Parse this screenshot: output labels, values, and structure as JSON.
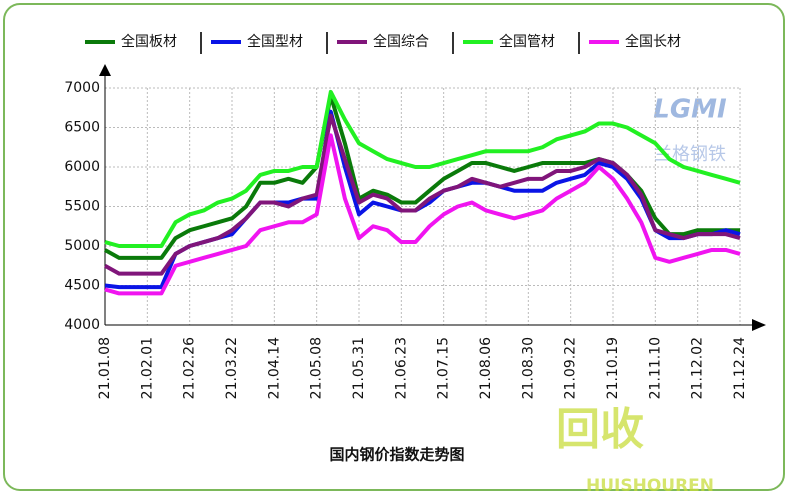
{
  "chart_data": {
    "type": "line",
    "title": "国内钢价指数走势图",
    "categories": [
      "21.01.08",
      null,
      null,
      "21.02.01",
      null,
      null,
      "21.02.26",
      null,
      null,
      "21.03.22",
      null,
      null,
      "21.04.14",
      null,
      null,
      "21.05.08",
      null,
      null,
      "21.05.31",
      null,
      null,
      "21.06.23",
      null,
      null,
      "21.07.15",
      null,
      null,
      "21.08.06",
      null,
      null,
      "21.08.30",
      null,
      null,
      "21.09.22",
      null,
      null,
      "21.10.19",
      null,
      null,
      "21.11.10",
      null,
      null,
      "21.12.02",
      null,
      null,
      "21.12.24"
    ],
    "series": [
      {
        "name": "全国板材",
        "color": "#0a7a0a",
        "values": [
          4950,
          4850,
          4850,
          4850,
          4850,
          5100,
          5200,
          5250,
          5300,
          5350,
          5500,
          5800,
          5800,
          5850,
          5800,
          6000,
          6900,
          6300,
          5600,
          5700,
          5650,
          5550,
          5550,
          5700,
          5850,
          5950,
          6050,
          6050,
          6000,
          5950,
          6000,
          6050,
          6050,
          6050,
          6050,
          6100,
          6050,
          5900,
          5700,
          5350,
          5150,
          5150,
          5200,
          5200,
          5200,
          5200
        ]
      },
      {
        "name": "全国型材",
        "color": "#0a14e6",
        "values": [
          4500,
          4480,
          4480,
          4480,
          4480,
          4900,
          5000,
          5050,
          5100,
          5150,
          5350,
          5550,
          5550,
          5550,
          5600,
          5600,
          6700,
          6000,
          5400,
          5550,
          5500,
          5450,
          5450,
          5550,
          5700,
          5750,
          5800,
          5800,
          5750,
          5700,
          5700,
          5700,
          5800,
          5850,
          5900,
          6050,
          6000,
          5850,
          5600,
          5200,
          5100,
          5100,
          5150,
          5150,
          5200,
          5150
        ]
      },
      {
        "name": "全国综合",
        "color": "#80157a",
        "values": [
          4750,
          4650,
          4650,
          4650,
          4650,
          4900,
          5000,
          5050,
          5100,
          5200,
          5350,
          5550,
          5550,
          5500,
          5600,
          5650,
          6650,
          6100,
          5550,
          5650,
          5600,
          5450,
          5450,
          5600,
          5700,
          5750,
          5850,
          5800,
          5750,
          5800,
          5850,
          5850,
          5950,
          5950,
          6000,
          6100,
          6050,
          5900,
          5650,
          5200,
          5150,
          5100,
          5150,
          5150,
          5150,
          5100
        ]
      },
      {
        "name": "全国管材",
        "color": "#22f022",
        "values": [
          5050,
          5000,
          5000,
          5000,
          5000,
          5300,
          5400,
          5450,
          5550,
          5600,
          5700,
          5900,
          5950,
          5950,
          6000,
          6000,
          6950,
          6600,
          6300,
          6200,
          6100,
          6050,
          6000,
          6000,
          6050,
          6100,
          6150,
          6200,
          6200,
          6200,
          6200,
          6250,
          6350,
          6400,
          6450,
          6550,
          6550,
          6500,
          6400,
          6300,
          6100,
          6000,
          5950,
          5900,
          5850,
          5800
        ]
      },
      {
        "name": "全国长材",
        "color": "#f014f0",
        "values": [
          4450,
          4400,
          4400,
          4400,
          4400,
          4750,
          4800,
          4850,
          4900,
          4950,
          5000,
          5200,
          5250,
          5300,
          5300,
          5400,
          6400,
          5600,
          5100,
          5250,
          5200,
          5050,
          5050,
          5250,
          5400,
          5500,
          5550,
          5450,
          5400,
          5350,
          5400,
          5450,
          5600,
          5700,
          5800,
          6000,
          5850,
          5600,
          5300,
          4850,
          4800,
          4850,
          4900,
          4950,
          4950,
          4900
        ]
      }
    ],
    "ylim": [
      4000,
      7000
    ],
    "yticks": [
      4000,
      4500,
      5000,
      5500,
      6000,
      6500,
      7000
    ],
    "grid": true,
    "annotations": [
      "LGMI",
      "兰格钢铁",
      "回收",
      "HUISHOUREN"
    ]
  }
}
